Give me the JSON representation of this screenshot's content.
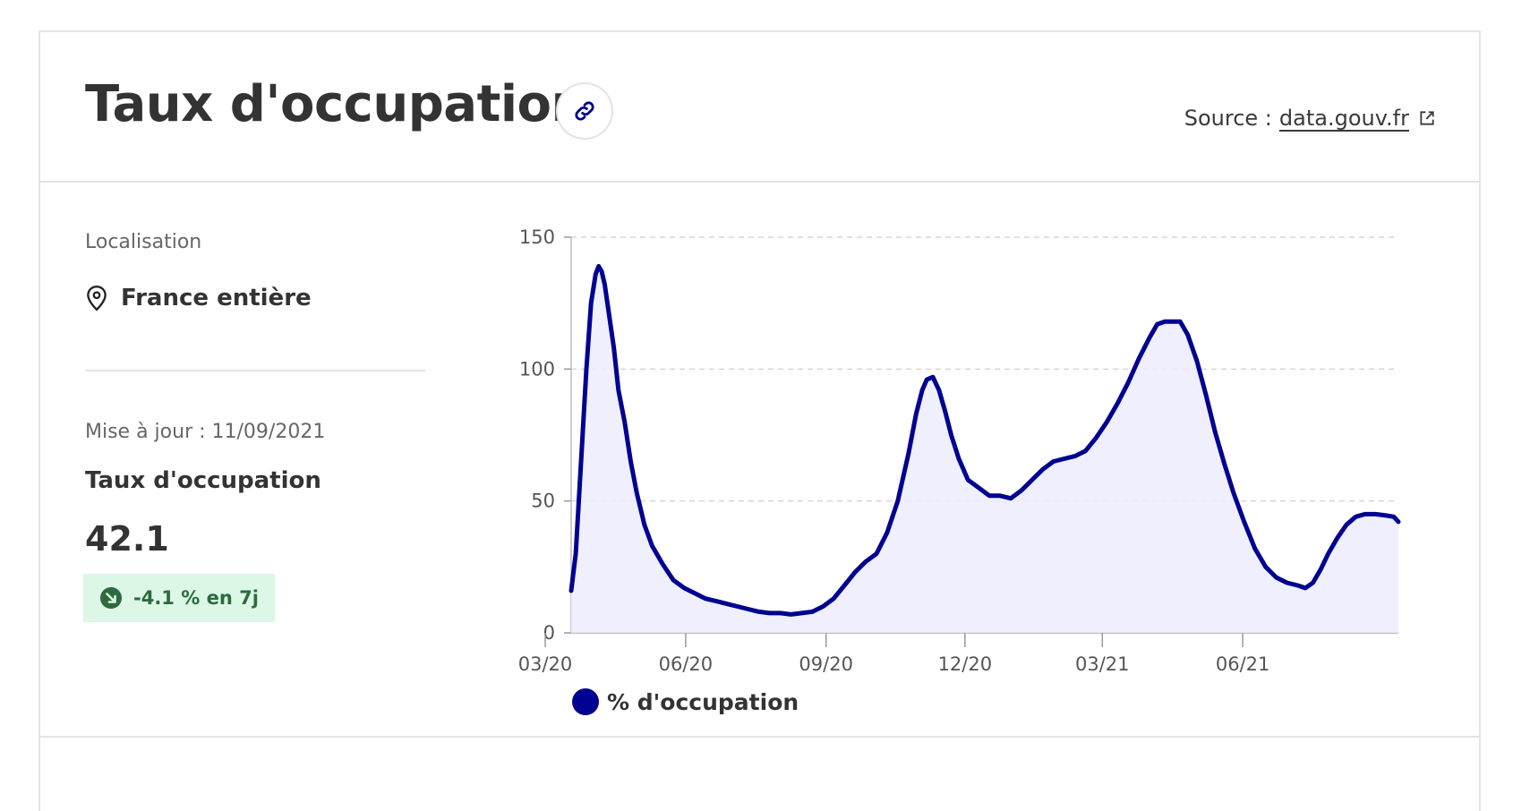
{
  "header": {
    "title": "Taux d'occupation",
    "source_prefix": "Source :",
    "source_link": "data.gouv.fr"
  },
  "location": {
    "label": "Localisation",
    "value": "France entière"
  },
  "metric": {
    "updated": "Mise à jour : 11/09/2021",
    "label": "Taux d'occupation",
    "value": "42.1",
    "change": "-4.1 % en 7j"
  },
  "icons": {
    "link": "link-icon",
    "external": "external-link-icon",
    "location": "map-pin-icon",
    "trend": "trend-down-icon"
  },
  "colors": {
    "series": "#000091",
    "fill": "#ececfe",
    "badge_bg": "#dcf7e6",
    "badge_text": "#2d6a3d"
  },
  "chart_data": {
    "type": "area",
    "title": "",
    "xlabel": "",
    "ylabel": "",
    "ylim": [
      0,
      150
    ],
    "yticks": [
      0,
      50,
      100,
      150
    ],
    "xticks": [
      "03/20",
      "06/20",
      "09/20",
      "12/20",
      "03/21",
      "06/21"
    ],
    "xlim": [
      "2020-03-18",
      "2021-09-11"
    ],
    "grid": true,
    "legend_position": "bottom",
    "series": [
      {
        "name": "% d'occupation",
        "color": "#000091",
        "points": [
          [
            "2020-03-18",
            16
          ],
          [
            "2020-03-21",
            30
          ],
          [
            "2020-03-24",
            60
          ],
          [
            "2020-03-28",
            100
          ],
          [
            "2020-03-31",
            125
          ],
          [
            "2020-04-03",
            136
          ],
          [
            "2020-04-05",
            139
          ],
          [
            "2020-04-07",
            137
          ],
          [
            "2020-04-09",
            132
          ],
          [
            "2020-04-12",
            120
          ],
          [
            "2020-04-15",
            108
          ],
          [
            "2020-04-18",
            92
          ],
          [
            "2020-04-22",
            80
          ],
          [
            "2020-04-26",
            65
          ],
          [
            "2020-04-30",
            53
          ],
          [
            "2020-05-05",
            41
          ],
          [
            "2020-05-10",
            33
          ],
          [
            "2020-05-17",
            26
          ],
          [
            "2020-05-24",
            20
          ],
          [
            "2020-05-31",
            17
          ],
          [
            "2020-06-07",
            15
          ],
          [
            "2020-06-14",
            13
          ],
          [
            "2020-06-21",
            12
          ],
          [
            "2020-06-28",
            11
          ],
          [
            "2020-07-05",
            10
          ],
          [
            "2020-07-12",
            9
          ],
          [
            "2020-07-19",
            8
          ],
          [
            "2020-07-26",
            7.5
          ],
          [
            "2020-08-02",
            7.5
          ],
          [
            "2020-08-09",
            7
          ],
          [
            "2020-08-16",
            7.5
          ],
          [
            "2020-08-23",
            8
          ],
          [
            "2020-08-30",
            10
          ],
          [
            "2020-09-06",
            13
          ],
          [
            "2020-09-13",
            18
          ],
          [
            "2020-09-20",
            23
          ],
          [
            "2020-09-27",
            27
          ],
          [
            "2020-10-04",
            30
          ],
          [
            "2020-10-11",
            38
          ],
          [
            "2020-10-18",
            50
          ],
          [
            "2020-10-25",
            68
          ],
          [
            "2020-10-30",
            83
          ],
          [
            "2020-11-03",
            92
          ],
          [
            "2020-11-06",
            96
          ],
          [
            "2020-11-10",
            97
          ],
          [
            "2020-11-14",
            92
          ],
          [
            "2020-11-18",
            84
          ],
          [
            "2020-11-22",
            75
          ],
          [
            "2020-11-27",
            66
          ],
          [
            "2020-12-03",
            58
          ],
          [
            "2020-12-10",
            55
          ],
          [
            "2020-12-17",
            52
          ],
          [
            "2020-12-24",
            52
          ],
          [
            "2020-12-31",
            51
          ],
          [
            "2021-01-07",
            54
          ],
          [
            "2021-01-14",
            58
          ],
          [
            "2021-01-21",
            62
          ],
          [
            "2021-01-28",
            65
          ],
          [
            "2021-02-04",
            66
          ],
          [
            "2021-02-11",
            67
          ],
          [
            "2021-02-18",
            69
          ],
          [
            "2021-02-25",
            74
          ],
          [
            "2021-03-04",
            80
          ],
          [
            "2021-03-11",
            87
          ],
          [
            "2021-03-18",
            95
          ],
          [
            "2021-03-25",
            104
          ],
          [
            "2021-04-01",
            112
          ],
          [
            "2021-04-06",
            117
          ],
          [
            "2021-04-11",
            118
          ],
          [
            "2021-04-16",
            118
          ],
          [
            "2021-04-21",
            118
          ],
          [
            "2021-04-26",
            113
          ],
          [
            "2021-05-02",
            103
          ],
          [
            "2021-05-08",
            90
          ],
          [
            "2021-05-14",
            76
          ],
          [
            "2021-05-20",
            64
          ],
          [
            "2021-05-26",
            53
          ],
          [
            "2021-06-02",
            42
          ],
          [
            "2021-06-09",
            32
          ],
          [
            "2021-06-16",
            25
          ],
          [
            "2021-06-23",
            21
          ],
          [
            "2021-06-30",
            19
          ],
          [
            "2021-07-07",
            18
          ],
          [
            "2021-07-12",
            17
          ],
          [
            "2021-07-17",
            19
          ],
          [
            "2021-07-22",
            24
          ],
          [
            "2021-07-27",
            30
          ],
          [
            "2021-08-02",
            36
          ],
          [
            "2021-08-08",
            41
          ],
          [
            "2021-08-14",
            44
          ],
          [
            "2021-08-20",
            45
          ],
          [
            "2021-08-27",
            45
          ],
          [
            "2021-09-03",
            44.5
          ],
          [
            "2021-09-08",
            44
          ],
          [
            "2021-09-11",
            42.1
          ]
        ]
      }
    ]
  }
}
